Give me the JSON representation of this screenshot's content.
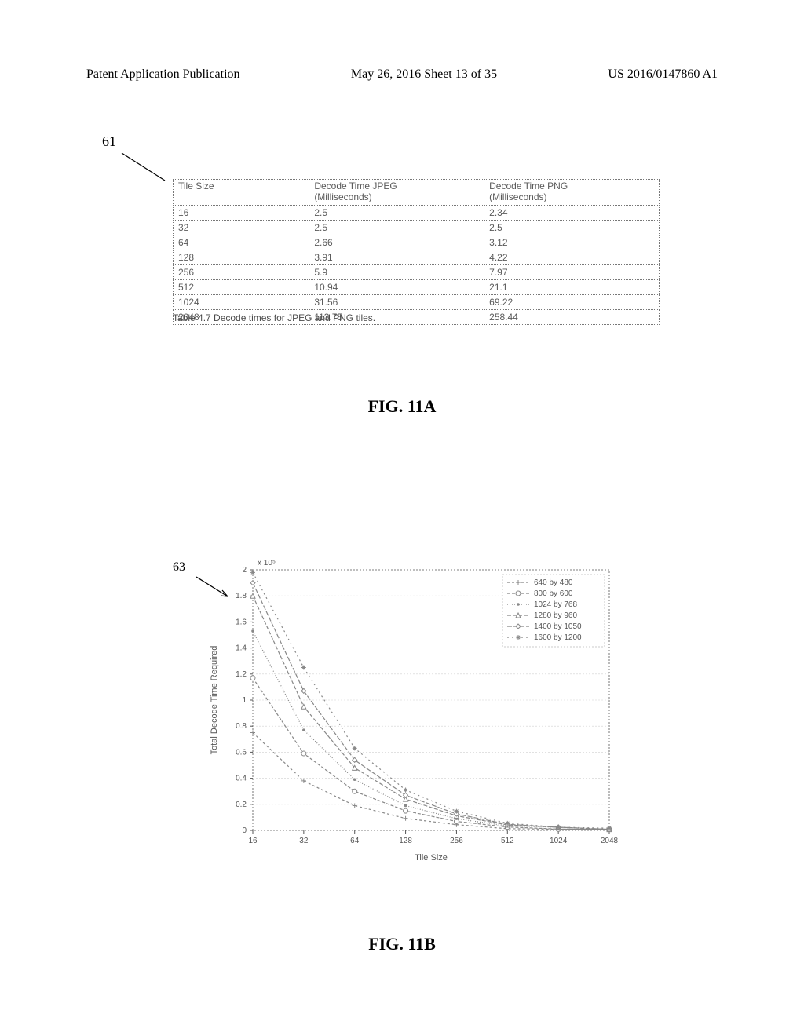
{
  "header": {
    "left": "Patent Application Publication",
    "center": "May 26, 2016  Sheet 13 of 35",
    "right": "US 2016/0147860 A1"
  },
  "ref_labels": {
    "r61": "61",
    "r63": "63"
  },
  "decode_table": {
    "columns": [
      "Tile Size",
      "Decode Time JPEG\n(Milliseconds)",
      "Decode Time PNG\n(Milliseconds)"
    ],
    "rows": [
      [
        "16",
        "2.5",
        "2.34"
      ],
      [
        "32",
        "2.5",
        "2.5"
      ],
      [
        "64",
        "2.66",
        "3.12"
      ],
      [
        "128",
        "3.91",
        "4.22"
      ],
      [
        "256",
        "5.9",
        "7.97"
      ],
      [
        "512",
        "10.94",
        "21.1"
      ],
      [
        "1024",
        "31.56",
        "69.22"
      ],
      [
        "2048",
        "113.75",
        "258.44"
      ]
    ],
    "caption": "Table 4.7 Decode times for JPEG and PNG tiles."
  },
  "fig_labels": {
    "f11a": "FIG. 11A",
    "f11b": "FIG. 11B"
  },
  "chart": {
    "type": "line",
    "x_categories": [
      "16",
      "32",
      "64",
      "128",
      "256",
      "512",
      "1024",
      "2048"
    ],
    "ylim": [
      0,
      2
    ],
    "ytick_step": 0.2,
    "y_multiplier_label": "x 10⁵",
    "xlabel": "Tile Size",
    "ylabel": "Total Decode Time Required",
    "background_color": "#ffffff",
    "grid_color": "#d0d0d0",
    "axis_color": "#555555",
    "text_color": "#555555",
    "label_fontsize": 11,
    "tick_fontsize": 10,
    "line_width": 1.2,
    "marker_size": 3,
    "series": [
      {
        "label": "640 by 480",
        "color": "#888888",
        "marker": "plus",
        "dash": "3 3",
        "values": [
          0.75,
          0.38,
          0.19,
          0.092,
          0.044,
          0.013,
          0.009,
          0.008
        ]
      },
      {
        "label": "800 by 600",
        "color": "#888888",
        "marker": "circle",
        "dash": "4 2",
        "values": [
          1.17,
          0.59,
          0.3,
          0.15,
          0.069,
          0.026,
          0.01,
          0.008
        ]
      },
      {
        "label": "1024 by 768",
        "color": "#888888",
        "marker": "dot",
        "dash": "1 2",
        "values": [
          1.53,
          0.77,
          0.39,
          0.19,
          0.09,
          0.034,
          0.024,
          0.008
        ]
      },
      {
        "label": "1280 by 960",
        "color": "#888888",
        "marker": "triangle",
        "dash": "5 2",
        "values": [
          1.8,
          0.95,
          0.48,
          0.24,
          0.112,
          0.042,
          0.024,
          0.008
        ]
      },
      {
        "label": "1400 by 1050",
        "color": "#888888",
        "marker": "diamond",
        "dash": "6 2",
        "values": [
          1.9,
          1.07,
          0.54,
          0.27,
          0.126,
          0.047,
          0.024,
          0.008
        ]
      },
      {
        "label": "1600 by 1200",
        "color": "#888888",
        "marker": "star",
        "dash": "2 4",
        "values": [
          1.98,
          1.25,
          0.63,
          0.31,
          0.147,
          0.055,
          0.024,
          0.017
        ]
      }
    ],
    "legend_position": "top-right"
  }
}
